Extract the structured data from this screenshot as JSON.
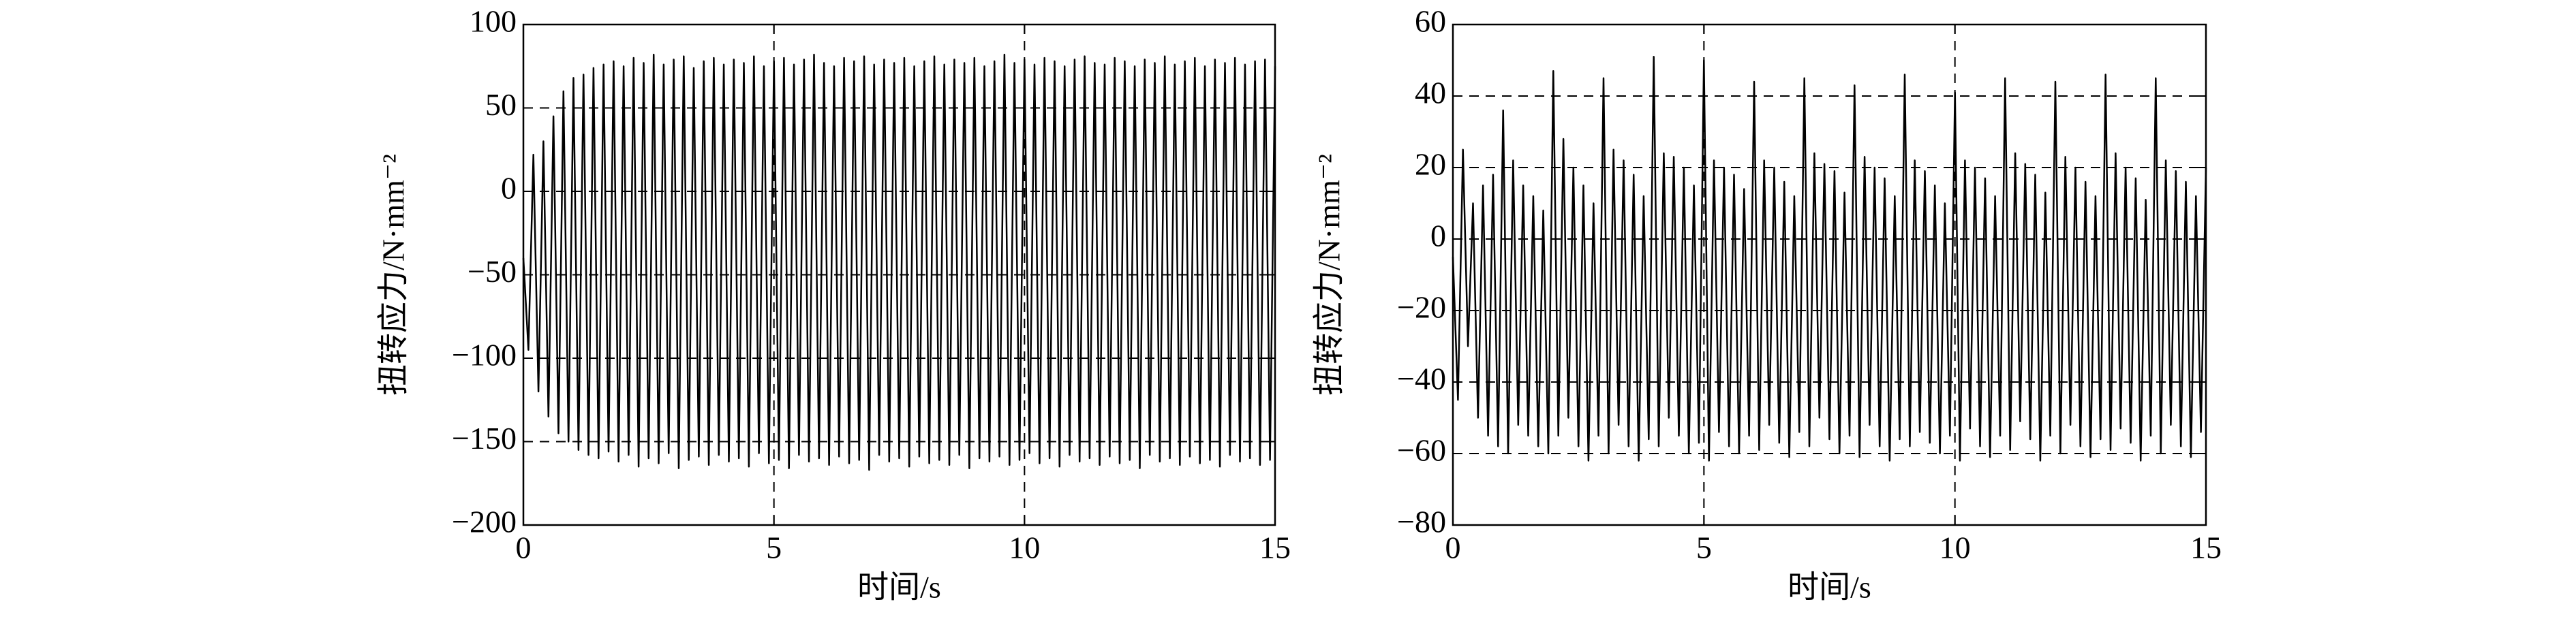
{
  "chart_data": [
    {
      "type": "line",
      "ylabel": "扭转应力/N·mm⁻²",
      "xlabel": "时间/s",
      "color": "#000000",
      "grid": true,
      "xlim": [
        0,
        15
      ],
      "xticks": [
        0,
        5,
        10,
        15
      ],
      "ylim": [
        -200,
        100
      ],
      "yticks": [
        100,
        50,
        0,
        {
          "value": -50,
          "label": "−50"
        },
        {
          "value": -100,
          "label": "−100"
        },
        {
          "value": -150,
          "label": "−150"
        },
        {
          "value": -200,
          "label": "−200"
        }
      ],
      "x": [
        0,
        0.1,
        0.2,
        0.3,
        0.4,
        0.5,
        0.6,
        0.7,
        0.8,
        0.9,
        1,
        1.1,
        1.2,
        1.3,
        1.4,
        1.5,
        1.6,
        1.7,
        1.8,
        1.9,
        2,
        2.1,
        2.2,
        2.3,
        2.4,
        2.5,
        2.6,
        2.7,
        2.8,
        2.9,
        3,
        3.1,
        3.2,
        3.3,
        3.4,
        3.5,
        3.6,
        3.7,
        3.8,
        3.9,
        4,
        4.1,
        4.2,
        4.3,
        4.4,
        4.5,
        4.6,
        4.7,
        4.8,
        4.9,
        5,
        5.1,
        5.2,
        5.3,
        5.4,
        5.5,
        5.6,
        5.7,
        5.8,
        5.9,
        6,
        6.1,
        6.2,
        6.3,
        6.4,
        6.5,
        6.6,
        6.7,
        6.8,
        6.9,
        7,
        7.1,
        7.2,
        7.3,
        7.4,
        7.5,
        7.6,
        7.7,
        7.8,
        7.9,
        8,
        8.1,
        8.2,
        8.3,
        8.4,
        8.5,
        8.6,
        8.7,
        8.8,
        8.9,
        9,
        9.1,
        9.2,
        9.3,
        9.4,
        9.5,
        9.6,
        9.7,
        9.8,
        9.9,
        10,
        10.1,
        10.2,
        10.3,
        10.4,
        10.5,
        10.6,
        10.7,
        10.8,
        10.9,
        11,
        11.1,
        11.2,
        11.3,
        11.4,
        11.5,
        11.6,
        11.7,
        11.8,
        11.9,
        12,
        12.1,
        12.2,
        12.3,
        12.4,
        12.5,
        12.6,
        12.7,
        12.8,
        12.9,
        13,
        13.1,
        13.2,
        13.3,
        13.4,
        13.5,
        13.6,
        13.7,
        13.8,
        13.9,
        14,
        14.1,
        14.2,
        14.3,
        14.4,
        14.5,
        14.6,
        14.7,
        14.8,
        14.9,
        15
      ],
      "values": [
        -40,
        -95,
        22,
        -120,
        30,
        -135,
        45,
        -145,
        60,
        -150,
        68,
        -155,
        70,
        -158,
        74,
        -160,
        76,
        -156,
        78,
        -162,
        75,
        -158,
        80,
        -165,
        77,
        -160,
        82,
        -163,
        76,
        -157,
        79,
        -166,
        81,
        -161,
        74,
        -159,
        78,
        -164,
        80,
        -158,
        76,
        -162,
        79,
        -160,
        77,
        -165,
        81,
        -157,
        75,
        -163,
        78,
        -161,
        80,
        -166,
        76,
        -158,
        79,
        -162,
        82,
        -160,
        77,
        -164,
        75,
        -159,
        80,
        -163,
        78,
        -161,
        81,
        -167,
        76,
        -158,
        79,
        -162,
        77,
        -160,
        80,
        -165,
        75,
        -159,
        78,
        -163,
        81,
        -161,
        76,
        -164,
        79,
        -158,
        77,
        -166,
        80,
        -160,
        75,
        -162,
        78,
        -159,
        82,
        -164,
        77,
        -161,
        79,
        -157,
        76,
        -163,
        80,
        -160,
        78,
        -165,
        75,
        -158,
        79,
        -162,
        81,
        -160,
        77,
        -164,
        76,
        -159,
        80,
        -163,
        78,
        -161,
        75,
        -166,
        79,
        -158,
        77,
        -162,
        81,
        -160,
        76,
        -164,
        78,
        -159,
        80,
        -163,
        75,
        -161,
        79,
        -165,
        77,
        -158,
        80,
        -162,
        76,
        -160,
        78,
        -164,
        79,
        -161,
        75
      ]
    },
    {
      "type": "line",
      "ylabel": "扭转应力/N·mm⁻²",
      "xlabel": "时间/s",
      "color": "#000000",
      "grid": true,
      "xlim": [
        0,
        15
      ],
      "xticks": [
        0,
        5,
        10,
        15
      ],
      "ylim": [
        -80,
        60
      ],
      "yticks": [
        60,
        40,
        20,
        0,
        {
          "value": -20,
          "label": "−20"
        },
        {
          "value": -40,
          "label": "−40"
        },
        {
          "value": -60,
          "label": "−60"
        },
        {
          "value": -80,
          "label": "−80"
        }
      ],
      "x": [
        0,
        0.1,
        0.2,
        0.3,
        0.4,
        0.5,
        0.6,
        0.7,
        0.8,
        0.9,
        1,
        1.1,
        1.2,
        1.3,
        1.4,
        1.5,
        1.6,
        1.7,
        1.8,
        1.9,
        2,
        2.1,
        2.2,
        2.3,
        2.4,
        2.5,
        2.6,
        2.7,
        2.8,
        2.9,
        3,
        3.1,
        3.2,
        3.3,
        3.4,
        3.5,
        3.6,
        3.7,
        3.8,
        3.9,
        4,
        4.1,
        4.2,
        4.3,
        4.4,
        4.5,
        4.6,
        4.7,
        4.8,
        4.9,
        5,
        5.1,
        5.2,
        5.3,
        5.4,
        5.5,
        5.6,
        5.7,
        5.8,
        5.9,
        6,
        6.1,
        6.2,
        6.3,
        6.4,
        6.5,
        6.6,
        6.7,
        6.8,
        6.9,
        7,
        7.1,
        7.2,
        7.3,
        7.4,
        7.5,
        7.6,
        7.7,
        7.8,
        7.9,
        8,
        8.1,
        8.2,
        8.3,
        8.4,
        8.5,
        8.6,
        8.7,
        8.8,
        8.9,
        9,
        9.1,
        9.2,
        9.3,
        9.4,
        9.5,
        9.6,
        9.7,
        9.8,
        9.9,
        10,
        10.1,
        10.2,
        10.3,
        10.4,
        10.5,
        10.6,
        10.7,
        10.8,
        10.9,
        11,
        11.1,
        11.2,
        11.3,
        11.4,
        11.5,
        11.6,
        11.7,
        11.8,
        11.9,
        12,
        12.1,
        12.2,
        12.3,
        12.4,
        12.5,
        12.6,
        12.7,
        12.8,
        12.9,
        13,
        13.1,
        13.2,
        13.3,
        13.4,
        13.5,
        13.6,
        13.7,
        13.8,
        13.9,
        14,
        14.1,
        14.2,
        14.3,
        14.4,
        14.5,
        14.6,
        14.7,
        14.8,
        14.9,
        15
      ],
      "values": [
        -5,
        -45,
        25,
        -30,
        10,
        -50,
        15,
        -55,
        18,
        -58,
        36,
        -60,
        22,
        -52,
        15,
        -55,
        12,
        -58,
        8,
        -60,
        47,
        -55,
        28,
        -50,
        20,
        -58,
        15,
        -62,
        10,
        -55,
        45,
        -60,
        25,
        -52,
        22,
        -58,
        18,
        -62,
        12,
        -56,
        51,
        -58,
        24,
        -50,
        23,
        -55,
        20,
        -60,
        15,
        -57,
        50,
        -62,
        22,
        -54,
        20,
        -58,
        18,
        -60,
        14,
        -55,
        44,
        -59,
        22,
        -52,
        20,
        -57,
        16,
        -61,
        12,
        -54,
        45,
        -58,
        24,
        -50,
        21,
        -56,
        19,
        -60,
        13,
        -55,
        43,
        -61,
        23,
        -52,
        20,
        -58,
        17,
        -62,
        12,
        -56,
        46,
        -58,
        22,
        -54,
        19,
        -57,
        15,
        -60,
        10,
        -55,
        41,
        -62,
        22,
        -53,
        20,
        -58,
        17,
        -61,
        12,
        -55,
        45,
        -59,
        24,
        -51,
        21,
        -56,
        18,
        -62,
        13,
        -55,
        44,
        -60,
        23,
        -52,
        20,
        -58,
        16,
        -61,
        12,
        -56,
        46,
        -59,
        24,
        -53,
        20,
        -57,
        17,
        -62,
        11,
        -55,
        45,
        -60,
        22,
        -52,
        19,
        -58,
        16,
        -61,
        12,
        -54,
        20
      ]
    }
  ]
}
